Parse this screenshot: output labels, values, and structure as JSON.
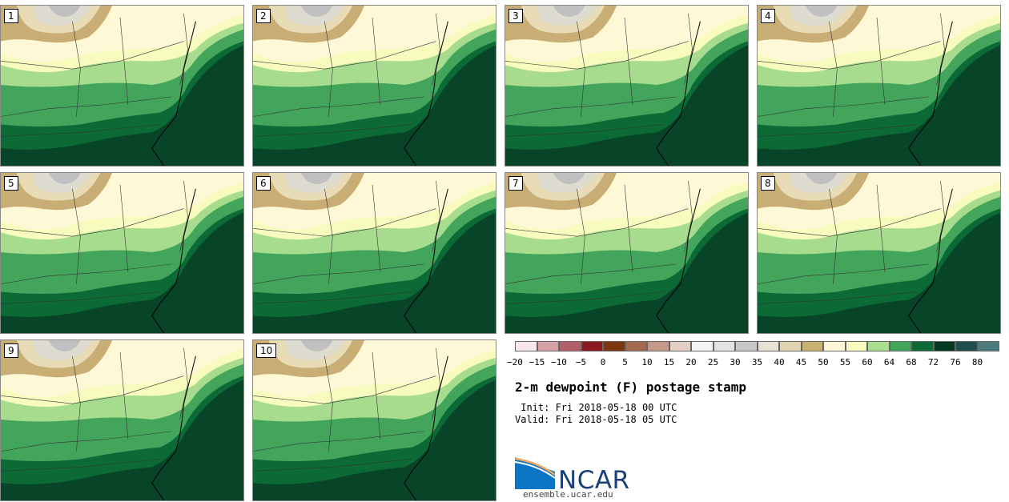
{
  "title": "2-m dewpoint (F) postage stamp",
  "init": " Init: Fri 2018-05-18 00 UTC",
  "valid": "Valid: Fri 2018-05-18 05 UTC",
  "logo_text": "NCAR",
  "url": "ensemble.ucar.edu",
  "members": [
    "1",
    "2",
    "3",
    "4",
    "5",
    "6",
    "7",
    "8",
    "9",
    "10"
  ],
  "colorbar": {
    "ticks": [
      "−20",
      "−15",
      "−10",
      "−5",
      "0",
      "5",
      "10",
      "15",
      "20",
      "25",
      "30",
      "35",
      "40",
      "45",
      "50",
      "55",
      "60",
      "64",
      "68",
      "72",
      "76",
      "80"
    ],
    "colors": [
      "#f7e6ea",
      "#d6a3ab",
      "#b2606a",
      "#8a1a22",
      "#7a3710",
      "#a36a4e",
      "#c39a89",
      "#e4cfc4",
      "#f4f4f4",
      "#e3e3e3",
      "#c8c8c8",
      "#e6e3d6",
      "#dfd3b0",
      "#c8af72",
      "#fff7d8",
      "#f8fbbb",
      "#a8de8e",
      "#41a55a",
      "#0b6a35",
      "#053b22",
      "#1e4f4e",
      "#4d7a7d"
    ]
  },
  "map_colors": {
    "cold": "#c0c0c0",
    "gray": "#dedcd0",
    "tan": "#c8ae74",
    "beige": "#e7dcb5",
    "cream": "#fff8d6",
    "yellow": "#f7fbbd",
    "light_green": "#a7dc8e",
    "green": "#43a55b",
    "dark_green": "#0b6a36",
    "darkest_green": "#074428"
  }
}
